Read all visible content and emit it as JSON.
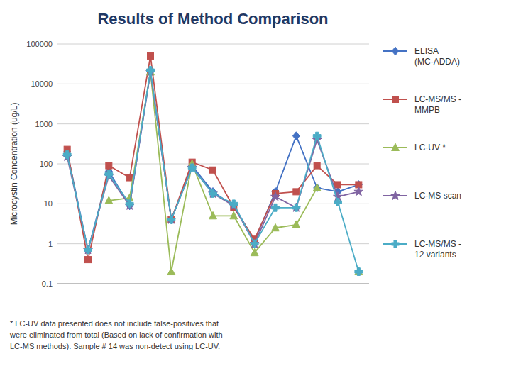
{
  "chart_data": {
    "type": "line",
    "title": "Results of Method Comparison",
    "y_label": "Microcystin Concentration (ug/L)",
    "footnote": "* LC-UV data presented does not include false-positives that\nwere eliminated from total (Based on lack of confirmation with\nLC-MS methods). Sample # 14 was non-detect using LC-UV.",
    "x": [
      1,
      2,
      3,
      4,
      5,
      6,
      7,
      8,
      9,
      10,
      11,
      12,
      13,
      14,
      15
    ],
    "xlim": [
      0.5,
      15.5
    ],
    "ylim": [
      0.1,
      100000
    ],
    "yticks": [
      0.1,
      1,
      10,
      100,
      1000,
      10000,
      100000
    ],
    "log": "y",
    "grid": true,
    "legend": "right",
    "tick_labels": "y",
    "series": [
      {
        "name": "ELISA\n(MC-ADDA)",
        "color": "#4472C4",
        "marker": "diamond",
        "values": [
          200,
          0.7,
          65,
          9,
          20000,
          4,
          90,
          20,
          9,
          1.2,
          20,
          500,
          25,
          20,
          30
        ]
      },
      {
        "name": "LC-MS/MS -\nMMPB",
        "color": "#C0504D",
        "marker": "square",
        "values": [
          230,
          0.4,
          90,
          45,
          50000,
          4,
          110,
          70,
          8,
          1.3,
          18,
          20,
          90,
          30,
          30
        ]
      },
      {
        "name": "LC-UV *",
        "color": "#9BBB59",
        "marker": "triangle",
        "values": [
          null,
          null,
          12,
          14,
          20000,
          0.2,
          100,
          5,
          5,
          0.6,
          2.5,
          3,
          25,
          null,
          0.2
        ]
      },
      {
        "name": "LC-MS scan",
        "color": "#8064A2",
        "marker": "star",
        "values": [
          150,
          0.7,
          50,
          9,
          20000,
          4,
          80,
          18,
          9,
          1.0,
          15,
          8,
          400,
          15,
          20
        ]
      },
      {
        "name": "LC-MS/MS -\n12 variants",
        "color": "#4BACC6",
        "marker": "plus",
        "values": [
          170,
          0.7,
          55,
          10,
          22000,
          4,
          80,
          18,
          10,
          1.0,
          8,
          8,
          500,
          11,
          0.2
        ]
      }
    ]
  }
}
